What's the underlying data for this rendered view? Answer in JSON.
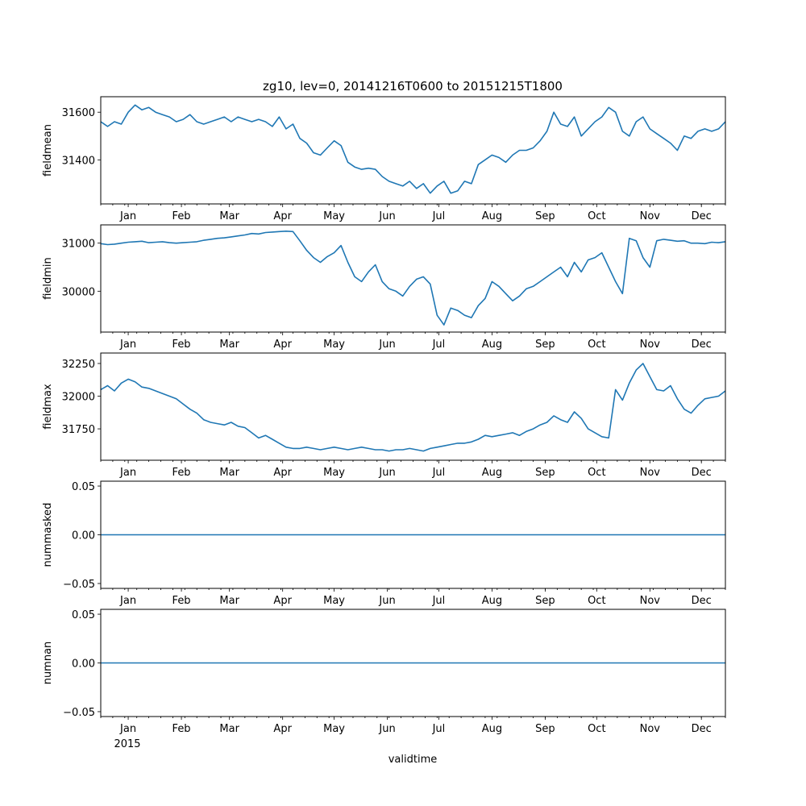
{
  "chart_data": {
    "type": "line",
    "title": "zg10, lev=0, 20141216T0600 to 20151215T1800",
    "xlabel": "validtime",
    "x_start": "2014-12-16",
    "x_end": "2015-12-15",
    "year_label": "2015",
    "line_color": "#1f77b4",
    "month_ticks": [
      {
        "label": "Jan",
        "day": 16
      },
      {
        "label": "Feb",
        "day": 47
      },
      {
        "label": "Mar",
        "day": 75
      },
      {
        "label": "Apr",
        "day": 106
      },
      {
        "label": "May",
        "day": 136
      },
      {
        "label": "Jun",
        "day": 167
      },
      {
        "label": "Jul",
        "day": 197
      },
      {
        "label": "Aug",
        "day": 228
      },
      {
        "label": "Sep",
        "day": 259
      },
      {
        "label": "Oct",
        "day": 289
      },
      {
        "label": "Nov",
        "day": 320
      },
      {
        "label": "Dec",
        "day": 350
      }
    ],
    "panels": [
      {
        "ylabel": "fieldmean",
        "ylim": [
          31215,
          31665
        ],
        "yticks": [
          31400,
          31600
        ],
        "ytick_labels": [
          "31400",
          "31600"
        ],
        "x": [
          0,
          4,
          8,
          12,
          16,
          20,
          24,
          28,
          32,
          36,
          40,
          44,
          48,
          52,
          56,
          60,
          64,
          68,
          72,
          76,
          80,
          84,
          88,
          92,
          96,
          100,
          104,
          108,
          112,
          116,
          120,
          124,
          128,
          132,
          136,
          140,
          144,
          148,
          152,
          156,
          160,
          164,
          168,
          172,
          176,
          180,
          184,
          188,
          192,
          196,
          200,
          204,
          208,
          212,
          216,
          220,
          224,
          228,
          232,
          236,
          240,
          244,
          248,
          252,
          256,
          260,
          264,
          268,
          272,
          276,
          280,
          284,
          288,
          292,
          296,
          300,
          304,
          308,
          312,
          316,
          320,
          324,
          328,
          332,
          336,
          340,
          344,
          348,
          352,
          356,
          360,
          364
        ],
        "values": [
          31560,
          31540,
          31560,
          31550,
          31600,
          31630,
          31610,
          31620,
          31600,
          31590,
          31580,
          31560,
          31570,
          31590,
          31560,
          31550,
          31560,
          31570,
          31580,
          31560,
          31580,
          31570,
          31560,
          31570,
          31560,
          31540,
          31580,
          31530,
          31550,
          31490,
          31470,
          31430,
          31420,
          31450,
          31480,
          31460,
          31390,
          31370,
          31360,
          31365,
          31360,
          31330,
          31310,
          31300,
          31290,
          31310,
          31280,
          31300,
          31260,
          31290,
          31310,
          31260,
          31270,
          31310,
          31300,
          31380,
          31400,
          31420,
          31410,
          31390,
          31420,
          31440,
          31440,
          31450,
          31480,
          31520,
          31600,
          31550,
          31540,
          31580,
          31500,
          31530,
          31560,
          31580,
          31620,
          31600,
          31520,
          31500,
          31560,
          31580,
          31530,
          31510,
          31490,
          31470,
          31440,
          31500,
          31490,
          31520,
          31530,
          31520,
          31530,
          31560
        ]
      },
      {
        "ylabel": "fieldmin",
        "ylim": [
          29150,
          31380
        ],
        "yticks": [
          30000,
          31000
        ],
        "ytick_labels": [
          "30000",
          "31000"
        ],
        "x": [
          0,
          4,
          8,
          12,
          16,
          20,
          24,
          28,
          32,
          36,
          40,
          44,
          48,
          52,
          56,
          60,
          64,
          68,
          72,
          76,
          80,
          84,
          88,
          92,
          96,
          100,
          104,
          108,
          112,
          116,
          120,
          124,
          128,
          132,
          136,
          140,
          144,
          148,
          152,
          156,
          160,
          164,
          168,
          172,
          176,
          180,
          184,
          188,
          192,
          196,
          200,
          204,
          208,
          212,
          216,
          220,
          224,
          228,
          232,
          236,
          240,
          244,
          248,
          252,
          256,
          260,
          264,
          268,
          272,
          276,
          280,
          284,
          288,
          292,
          296,
          300,
          304,
          308,
          312,
          316,
          320,
          324,
          328,
          332,
          336,
          340,
          344,
          348,
          352,
          356,
          360,
          364
        ],
        "values": [
          30990,
          30970,
          30980,
          31000,
          31020,
          31030,
          31040,
          31010,
          31020,
          31030,
          31010,
          31000,
          31010,
          31020,
          31030,
          31060,
          31080,
          31100,
          31110,
          31130,
          31150,
          31170,
          31200,
          31190,
          31220,
          31230,
          31240,
          31250,
          31240,
          31050,
          30850,
          30700,
          30600,
          30720,
          30800,
          30950,
          30600,
          30300,
          30200,
          30400,
          30550,
          30200,
          30050,
          30000,
          29900,
          30100,
          30250,
          30300,
          30150,
          29500,
          29300,
          29650,
          29600,
          29500,
          29450,
          29700,
          29850,
          30200,
          30100,
          29950,
          29800,
          29900,
          30050,
          30100,
          30200,
          30300,
          30400,
          30500,
          30300,
          30600,
          30400,
          30650,
          30700,
          30800,
          30500,
          30200,
          29950,
          31100,
          31050,
          30700,
          30500,
          31050,
          31080,
          31060,
          31040,
          31050,
          31000,
          31000,
          30990,
          31020,
          31010,
          31030
        ]
      },
      {
        "ylabel": "fieldmax",
        "ylim": [
          31510,
          32330
        ],
        "yticks": [
          31750,
          32000,
          32250
        ],
        "ytick_labels": [
          "31750",
          "32000",
          "32250"
        ],
        "x": [
          0,
          4,
          8,
          12,
          16,
          20,
          24,
          28,
          32,
          36,
          40,
          44,
          48,
          52,
          56,
          60,
          64,
          68,
          72,
          76,
          80,
          84,
          88,
          92,
          96,
          100,
          104,
          108,
          112,
          116,
          120,
          124,
          128,
          132,
          136,
          140,
          144,
          148,
          152,
          156,
          160,
          164,
          168,
          172,
          176,
          180,
          184,
          188,
          192,
          196,
          200,
          204,
          208,
          212,
          216,
          220,
          224,
          228,
          232,
          236,
          240,
          244,
          248,
          252,
          256,
          260,
          264,
          268,
          272,
          276,
          280,
          284,
          288,
          292,
          296,
          300,
          304,
          308,
          312,
          316,
          320,
          324,
          328,
          332,
          336,
          340,
          344,
          348,
          352,
          356,
          360,
          364
        ],
        "values": [
          32050,
          32080,
          32040,
          32100,
          32130,
          32110,
          32070,
          32060,
          32040,
          32020,
          32000,
          31980,
          31940,
          31900,
          31870,
          31820,
          31800,
          31790,
          31780,
          31800,
          31770,
          31760,
          31720,
          31680,
          31700,
          31670,
          31640,
          31610,
          31600,
          31600,
          31610,
          31600,
          31590,
          31600,
          31610,
          31600,
          31590,
          31600,
          31610,
          31600,
          31590,
          31590,
          31580,
          31590,
          31590,
          31600,
          31590,
          31580,
          31600,
          31610,
          31620,
          31630,
          31640,
          31640,
          31650,
          31670,
          31700,
          31690,
          31700,
          31710,
          31720,
          31700,
          31730,
          31750,
          31780,
          31800,
          31850,
          31820,
          31800,
          31880,
          31830,
          31750,
          31720,
          31690,
          31680,
          32050,
          31970,
          32100,
          32200,
          32250,
          32150,
          32050,
          32040,
          32080,
          31980,
          31900,
          31870,
          31930,
          31980,
          31990,
          32000,
          32040
        ]
      },
      {
        "ylabel": "nummasked",
        "ylim": [
          -0.055,
          0.055
        ],
        "yticks": [
          -0.05,
          0.0,
          0.05
        ],
        "ytick_labels": [
          "−0.05",
          "0.00",
          "0.05"
        ],
        "x": [
          0,
          364
        ],
        "values": [
          0,
          0
        ]
      },
      {
        "ylabel": "numnan",
        "ylim": [
          -0.055,
          0.055
        ],
        "yticks": [
          -0.05,
          0.0,
          0.05
        ],
        "ytick_labels": [
          "−0.05",
          "0.00",
          "0.05"
        ],
        "x": [
          0,
          364
        ],
        "values": [
          0,
          0
        ]
      }
    ]
  }
}
